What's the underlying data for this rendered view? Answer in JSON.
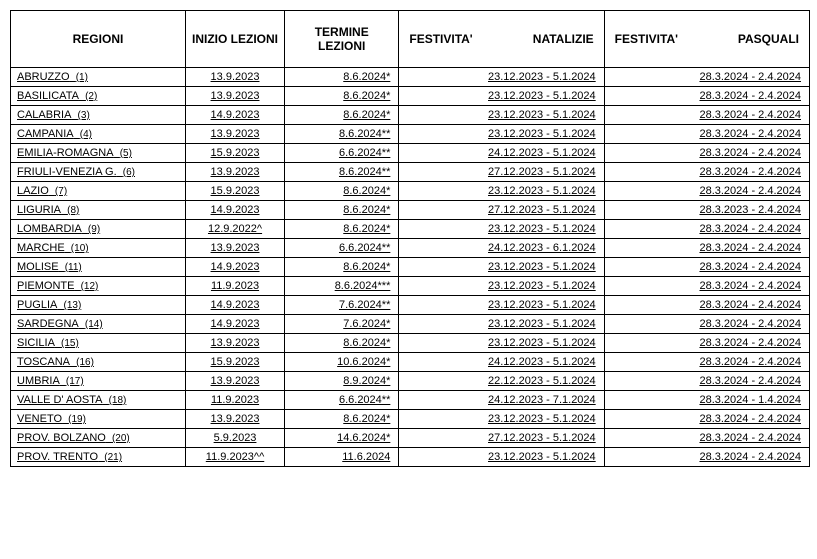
{
  "columns": [
    {
      "kind": "single",
      "label": "REGIONI"
    },
    {
      "kind": "single",
      "label": "INIZIO LEZIONI"
    },
    {
      "kind": "single",
      "label": "TERMINE LEZIONI"
    },
    {
      "kind": "split",
      "left": "FESTIVITA'",
      "right": "NATALIZIE"
    },
    {
      "kind": "split",
      "left": "FESTIVITA'",
      "right": "PASQUALI"
    }
  ],
  "rows": [
    {
      "region": "ABRUZZO",
      "num": "(1)",
      "inizio": "13.9.2023",
      "termine": "8.6.2024*",
      "natale": "23.12.2023 - 5.1.2024",
      "pasqua": "28.3.2024 - 2.4.2024"
    },
    {
      "region": "BASILICATA",
      "num": "(2)",
      "inizio": "13.9.2023",
      "termine": "8.6.2024*",
      "natale": "23.12.2023 - 5.1.2024",
      "pasqua": "28.3.2024 - 2.4.2024"
    },
    {
      "region": "CALABRIA",
      "num": "(3)",
      "inizio": "14.9.2023",
      "termine": "8.6.2024*",
      "natale": "23.12.2023 - 5.1.2024",
      "pasqua": "28.3.2024 - 2.4.2024"
    },
    {
      "region": "CAMPANIA",
      "num": "(4)",
      "inizio": "13.9.2023",
      "termine": "8.6.2024**",
      "natale": "23.12.2023 - 5.1.2024",
      "pasqua": "28.3.2024 - 2.4.2024"
    },
    {
      "region": "EMILIA-ROMAGNA",
      "num": "(5)",
      "inizio": "15.9.2023",
      "termine": "6.6.2024**",
      "natale": "24.12.2023 - 5.1.2024",
      "pasqua": "28.3.2024 - 2.4.2024"
    },
    {
      "region": "FRIULI-VENEZIA G.",
      "num": "(6)",
      "inizio": "13.9.2023",
      "termine": "8.6.2024**",
      "natale": "27.12.2023 - 5.1.2024",
      "pasqua": "28.3.2024 - 2.4.2024"
    },
    {
      "region": "LAZIO",
      "num": "(7)",
      "inizio": "15.9.2023",
      "termine": "8.6.2024*",
      "natale": "23.12.2023 - 5.1.2024",
      "pasqua": "28.3.2024 - 2.4.2024"
    },
    {
      "region": "LIGURIA",
      "num": "(8)",
      "inizio": "14.9.2023",
      "termine": "8.6.2024*",
      "natale": "27.12.2023 - 5.1.2024",
      "pasqua": "28.3.2023 - 2.4.2024"
    },
    {
      "region": "LOMBARDIA",
      "num": "(9)",
      "inizio": "12.9.2022^",
      "termine": "8.6.2024*",
      "natale": "23.12.2023 - 5.1.2024",
      "pasqua": "28.3.2024 - 2.4.2024"
    },
    {
      "region": "MARCHE",
      "num": "(10)",
      "inizio": "13.9.2023",
      "termine": "6.6.2024**",
      "natale": "24.12.2023 - 6.1.2024",
      "pasqua": "28.3.2024 - 2.4.2024"
    },
    {
      "region": "MOLISE",
      "num": "(11)",
      "inizio": "14.9.2023",
      "termine": "8.6.2024*",
      "natale": "23.12.2023 - 5.1.2024",
      "pasqua": "28.3.2024 - 2.4.2024"
    },
    {
      "region": "PIEMONTE",
      "num": "(12)",
      "inizio": "11.9.2023",
      "termine": "8.6.2024***",
      "natale": "23.12.2023 - 5.1.2024",
      "pasqua": "28.3.2024 - 2.4.2024"
    },
    {
      "region": "PUGLIA",
      "num": "(13)",
      "inizio": "14.9.2023",
      "termine": "7.6.2024**",
      "natale": "23.12.2023 - 5.1.2024",
      "pasqua": "28.3.2024 - 2.4.2024"
    },
    {
      "region": "SARDEGNA",
      "num": "(14)",
      "inizio": "14.9.2023",
      "termine": "7.6.2024*",
      "natale": "23.12.2023 - 5.1.2024",
      "pasqua": "28.3.2024 - 2.4.2024"
    },
    {
      "region": "SICILIA",
      "num": "(15)",
      "inizio": "13.9.2023",
      "termine": "8.6.2024*",
      "natale": "23.12.2023 - 5.1.2024",
      "pasqua": "28.3.2024 - 2.4.2024"
    },
    {
      "region": "TOSCANA",
      "num": "(16)",
      "inizio": "15.9.2023",
      "termine": "10.6.2024*",
      "natale": "24.12.2023 - 5.1.2024",
      "pasqua": "28.3.2024 - 2.4.2024"
    },
    {
      "region": "UMBRIA",
      "num": "(17)",
      "inizio": "13.9.2023",
      "termine": "8.9.2024*",
      "natale": "22.12.2023 - 5.1.2024",
      "pasqua": "28.3.2024 - 2.4.2024"
    },
    {
      "region": "VALLE D' AOSTA",
      "num": "(18)",
      "inizio": "11.9.2023",
      "termine": "6.6.2024**",
      "natale": "24.12.2023 - 7.1.2024",
      "pasqua": "28.3.2024 - 1.4.2024"
    },
    {
      "region": "VENETO",
      "num": "(19)",
      "inizio": "13.9.2023",
      "termine": "8.6.2024*",
      "natale": "23.12.2023 - 5.1.2024",
      "pasqua": "28.3.2024 - 2.4.2024"
    },
    {
      "region": "PROV. BOLZANO",
      "num": "(20)",
      "inizio": "5.9.2023",
      "termine": "14.6.2024*",
      "natale": "27.12.2023 - 5.1.2024",
      "pasqua": "28.3.2024 - 2.4.2024"
    },
    {
      "region": "PROV. TRENTO",
      "num": "(21)",
      "inizio": "11.9.2023^^",
      "termine": "11.6.2024",
      "natale": "23.12.2023 - 5.1.2024",
      "pasqua": "28.3.2024 - 2.4.2024"
    }
  ]
}
